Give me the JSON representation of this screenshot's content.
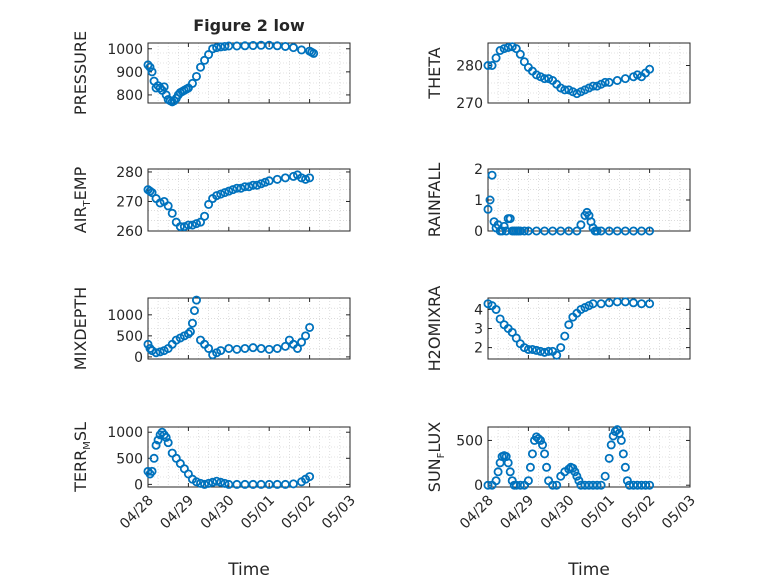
{
  "figure": {
    "title": "Figure 2 low",
    "marker_color": "#0072bd",
    "x_tick_labels": [
      "04/28",
      "04/29",
      "04/30",
      "05/01",
      "05/02",
      "05/03"
    ],
    "x_label": "Time"
  },
  "chart_data": [
    {
      "type": "scatter",
      "ylabel": "PRESSURE",
      "ylim": [
        765,
        1025
      ],
      "yticks": [
        800,
        900,
        1000
      ],
      "grid": "dotted",
      "x_unit": "days since 04/28",
      "x": [
        0.0,
        0.05,
        0.1,
        0.15,
        0.2,
        0.25,
        0.3,
        0.35,
        0.4,
        0.45,
        0.5,
        0.55,
        0.6,
        0.65,
        0.7,
        0.75,
        0.8,
        0.85,
        0.9,
        0.95,
        1.0,
        1.1,
        1.2,
        1.3,
        1.4,
        1.5,
        1.6,
        1.7,
        1.8,
        1.9,
        2.0,
        2.2,
        2.4,
        2.6,
        2.8,
        3.0,
        3.2,
        3.4,
        3.6,
        3.8,
        4.0,
        4.05,
        4.1
      ],
      "y": [
        930,
        920,
        900,
        860,
        830,
        840,
        830,
        820,
        835,
        800,
        780,
        775,
        770,
        775,
        785,
        800,
        810,
        815,
        820,
        825,
        830,
        850,
        880,
        920,
        950,
        975,
        1000,
        1005,
        1008,
        1010,
        1012,
        1012,
        1013,
        1014,
        1015,
        1015,
        1013,
        1010,
        1005,
        995,
        990,
        985,
        980
      ]
    },
    {
      "type": "scatter",
      "ylabel": "THETA",
      "ylim": [
        270,
        286
      ],
      "yticks": [
        270,
        280
      ],
      "grid": "dotted",
      "x_unit": "days since 04/28",
      "x": [
        0.0,
        0.1,
        0.2,
        0.3,
        0.4,
        0.5,
        0.6,
        0.7,
        0.8,
        0.9,
        1.0,
        1.1,
        1.2,
        1.3,
        1.4,
        1.5,
        1.6,
        1.7,
        1.8,
        1.9,
        2.0,
        2.1,
        2.2,
        2.3,
        2.4,
        2.5,
        2.6,
        2.7,
        2.8,
        2.9,
        3.0,
        3.2,
        3.4,
        3.6,
        3.7,
        3.8,
        3.9,
        4.0
      ],
      "y": [
        280,
        280,
        282,
        284,
        284.5,
        284.8,
        285,
        284.5,
        283,
        281,
        279.5,
        278.5,
        277.5,
        277,
        276.5,
        276.5,
        276,
        275,
        274,
        273.5,
        273.5,
        273,
        272.5,
        273,
        273.5,
        274,
        274.5,
        274.5,
        275,
        275.5,
        275.5,
        276,
        276.5,
        277,
        277.5,
        277,
        278,
        279
      ]
    },
    {
      "type": "scatter",
      "ylabel": "AIR_TEMP",
      "ylim": [
        260,
        281
      ],
      "yticks": [
        260,
        270,
        280
      ],
      "grid": "dotted",
      "x_unit": "days since 04/28",
      "x": [
        0.0,
        0.05,
        0.1,
        0.2,
        0.3,
        0.4,
        0.5,
        0.6,
        0.7,
        0.8,
        0.9,
        1.0,
        1.1,
        1.2,
        1.3,
        1.4,
        1.5,
        1.6,
        1.7,
        1.8,
        1.9,
        2.0,
        2.1,
        2.2,
        2.3,
        2.4,
        2.5,
        2.6,
        2.7,
        2.8,
        2.9,
        3.0,
        3.2,
        3.4,
        3.6,
        3.7,
        3.8,
        3.9,
        4.0
      ],
      "y": [
        274,
        273.5,
        273,
        271,
        269.5,
        270,
        268.5,
        266,
        263,
        261.5,
        261.5,
        262,
        262,
        262.5,
        263,
        265,
        269,
        271,
        272,
        272.5,
        273,
        273.5,
        274,
        274.5,
        274.5,
        275,
        275,
        275.5,
        275.5,
        276,
        276.5,
        277,
        277.5,
        278,
        278.5,
        279,
        278,
        277.5,
        278
      ]
    },
    {
      "type": "scatter",
      "ylabel": "RAINFALL",
      "ylim": [
        0,
        2
      ],
      "yticks": [
        0,
        1,
        2
      ],
      "grid": "dotted",
      "x_unit": "days since 04/28",
      "x": [
        0.0,
        0.05,
        0.1,
        0.15,
        0.2,
        0.25,
        0.3,
        0.35,
        0.4,
        0.45,
        0.5,
        0.55,
        0.6,
        0.65,
        0.7,
        0.75,
        0.8,
        0.9,
        1.0,
        1.2,
        1.4,
        1.6,
        1.8,
        2.0,
        2.2,
        2.3,
        2.4,
        2.45,
        2.5,
        2.55,
        2.6,
        2.65,
        2.7,
        2.8,
        3.0,
        3.2,
        3.4,
        3.6,
        3.8,
        4.0
      ],
      "y": [
        0.7,
        1.0,
        1.8,
        0.3,
        0.1,
        0.2,
        0,
        0,
        0.15,
        0,
        0.4,
        0.4,
        0,
        0,
        0,
        0,
        0,
        0,
        0,
        0,
        0,
        0,
        0,
        0,
        0,
        0.2,
        0.5,
        0.6,
        0.5,
        0.3,
        0.1,
        0,
        0,
        0,
        0,
        0,
        0,
        0,
        0,
        0
      ]
    },
    {
      "type": "scatter",
      "ylabel": "MIXDEPTH",
      "ylim": [
        -50,
        1400
      ],
      "yticks": [
        0,
        500,
        1000
      ],
      "grid": "dotted",
      "x_unit": "days since 04/28",
      "x": [
        0.0,
        0.05,
        0.1,
        0.2,
        0.3,
        0.4,
        0.5,
        0.6,
        0.7,
        0.8,
        0.9,
        1.0,
        1.05,
        1.1,
        1.15,
        1.2,
        1.3,
        1.4,
        1.5,
        1.6,
        1.7,
        1.8,
        2.0,
        2.2,
        2.4,
        2.6,
        2.8,
        3.0,
        3.2,
        3.4,
        3.5,
        3.6,
        3.7,
        3.8,
        3.9,
        4.0
      ],
      "y": [
        300,
        200,
        150,
        100,
        120,
        150,
        200,
        300,
        400,
        450,
        500,
        550,
        600,
        800,
        1100,
        1350,
        400,
        300,
        200,
        50,
        100,
        150,
        200,
        180,
        200,
        220,
        200,
        180,
        200,
        250,
        400,
        300,
        200,
        350,
        500,
        700
      ]
    },
    {
      "type": "scatter",
      "ylabel": "H2OMIXRA",
      "ylim": [
        1.4,
        4.6
      ],
      "yticks": [
        2,
        3,
        4
      ],
      "grid": "dotted",
      "x_unit": "days since 04/28",
      "x": [
        0.0,
        0.1,
        0.2,
        0.3,
        0.4,
        0.5,
        0.6,
        0.7,
        0.8,
        0.9,
        1.0,
        1.1,
        1.2,
        1.3,
        1.4,
        1.5,
        1.6,
        1.7,
        1.8,
        1.9,
        2.0,
        2.1,
        2.2,
        2.3,
        2.4,
        2.5,
        2.6,
        2.8,
        3.0,
        3.2,
        3.4,
        3.6,
        3.8,
        4.0
      ],
      "y": [
        4.3,
        4.2,
        4.0,
        3.5,
        3.2,
        3.0,
        2.8,
        2.5,
        2.2,
        2.0,
        1.9,
        1.9,
        1.85,
        1.8,
        1.75,
        1.8,
        1.8,
        1.6,
        2.0,
        2.6,
        3.2,
        3.6,
        3.8,
        4.0,
        4.1,
        4.2,
        4.3,
        4.3,
        4.35,
        4.4,
        4.4,
        4.35,
        4.3,
        4.3
      ]
    },
    {
      "type": "scatter",
      "ylabel": "TERR_MSL",
      "ylim": [
        -50,
        1100
      ],
      "yticks": [
        0,
        500,
        1000
      ],
      "grid": "dotted",
      "x_unit": "days since 04/28",
      "x": [
        0.0,
        0.05,
        0.1,
        0.15,
        0.2,
        0.25,
        0.3,
        0.35,
        0.4,
        0.45,
        0.5,
        0.6,
        0.7,
        0.8,
        0.9,
        1.0,
        1.1,
        1.2,
        1.3,
        1.4,
        1.5,
        1.6,
        1.7,
        1.8,
        1.9,
        2.0,
        2.2,
        2.4,
        2.6,
        2.8,
        3.0,
        3.2,
        3.4,
        3.6,
        3.8,
        3.9,
        4.0
      ],
      "y": [
        250,
        200,
        250,
        500,
        750,
        850,
        950,
        1000,
        950,
        900,
        800,
        600,
        500,
        400,
        300,
        200,
        100,
        50,
        20,
        0,
        20,
        40,
        60,
        40,
        20,
        0,
        0,
        0,
        0,
        0,
        0,
        0,
        0,
        10,
        50,
        100,
        150
      ]
    },
    {
      "type": "scatter",
      "ylabel": "SUN_FLUX",
      "ylim": [
        -20,
        650
      ],
      "yticks": [
        0,
        500
      ],
      "grid": "dotted",
      "x_unit": "days since 04/28",
      "x": [
        0.0,
        0.1,
        0.2,
        0.25,
        0.3,
        0.35,
        0.4,
        0.45,
        0.5,
        0.55,
        0.6,
        0.65,
        0.7,
        0.8,
        0.9,
        1.0,
        1.05,
        1.1,
        1.15,
        1.2,
        1.25,
        1.3,
        1.35,
        1.4,
        1.45,
        1.5,
        1.6,
        1.7,
        1.8,
        1.9,
        2.0,
        2.05,
        2.1,
        2.15,
        2.2,
        2.25,
        2.3,
        2.4,
        2.5,
        2.6,
        2.7,
        2.8,
        2.9,
        3.0,
        3.05,
        3.1,
        3.15,
        3.2,
        3.25,
        3.3,
        3.35,
        3.4,
        3.45,
        3.5,
        3.6,
        3.7,
        3.8,
        3.9,
        4.0
      ],
      "y": [
        0,
        0,
        50,
        150,
        250,
        320,
        330,
        320,
        250,
        150,
        50,
        0,
        0,
        0,
        0,
        50,
        200,
        350,
        500,
        540,
        520,
        500,
        450,
        350,
        200,
        50,
        0,
        0,
        100,
        150,
        180,
        200,
        190,
        150,
        100,
        50,
        0,
        0,
        0,
        0,
        0,
        0,
        100,
        300,
        450,
        550,
        600,
        620,
        580,
        500,
        350,
        200,
        50,
        0,
        0,
        0,
        0,
        0,
        0
      ]
    }
  ]
}
